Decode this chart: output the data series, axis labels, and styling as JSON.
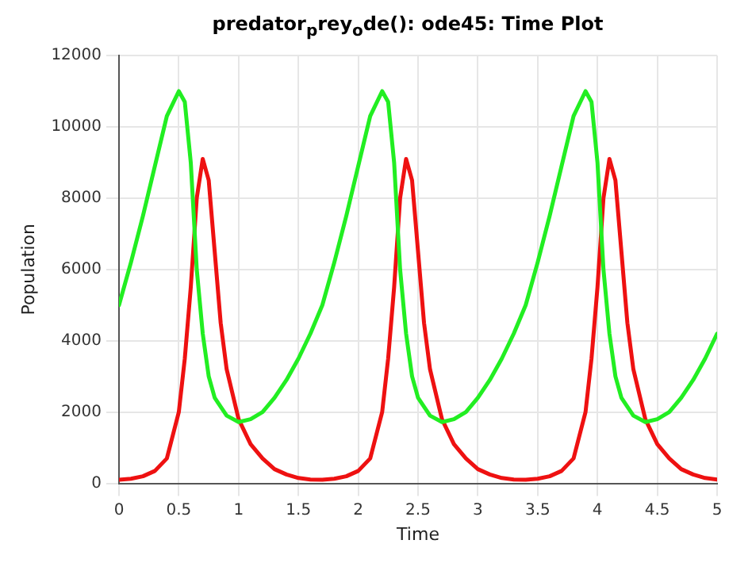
{
  "chart_data": {
    "type": "line",
    "title": "predator$_{p}$rey$_{o}$de(): ode45: Time Plot",
    "xlabel": "Time",
    "ylabel": "Population",
    "xlim": [
      0,
      5
    ],
    "xticks": [
      0,
      0.5,
      1,
      1.5,
      2,
      2.5,
      3,
      3.5,
      4,
      4.5,
      5
    ],
    "ylim": [
      0,
      12000
    ],
    "yticks": [
      0,
      2000,
      4000,
      6000,
      8000,
      10000,
      12000
    ],
    "grid": true,
    "legend": false,
    "marker": "none",
    "line_style": "solid",
    "series": [
      {
        "color": "#22ee22",
        "x": [
          0,
          0.1,
          0.2,
          0.3,
          0.4,
          0.5,
          0.55,
          0.6,
          0.65,
          0.7,
          0.75,
          0.8,
          0.9,
          1,
          1.1,
          1.2,
          1.3,
          1.4,
          1.5,
          1.6,
          1.7,
          1.8,
          1.9,
          2,
          2.1,
          2.2,
          2.25,
          2.3,
          2.35,
          2.4,
          2.45,
          2.5,
          2.6,
          2.7,
          2.8,
          2.9,
          3,
          3.1,
          3.2,
          3.3,
          3.4,
          3.5,
          3.6,
          3.7,
          3.8,
          3.9,
          3.95,
          4,
          4.05,
          4.1,
          4.15,
          4.2,
          4.3,
          4.4,
          4.5,
          4.6,
          4.7,
          4.8,
          4.9,
          5
        ],
        "values": [
          5000,
          6200,
          7500,
          8900,
          10300,
          11000,
          10700,
          9000,
          6000,
          4200,
          3000,
          2400,
          1900,
          1720,
          1800,
          2000,
          2400,
          2900,
          3500,
          4200,
          5000,
          6200,
          7500,
          8900,
          10300,
          11000,
          10700,
          9000,
          6000,
          4200,
          3000,
          2400,
          1900,
          1720,
          1800,
          2000,
          2400,
          2900,
          3500,
          4200,
          5000,
          6200,
          7500,
          8900,
          10300,
          11000,
          10700,
          9000,
          6000,
          4200,
          3000,
          2400,
          1900,
          1720,
          1800,
          2000,
          2400,
          2900,
          3500,
          4200
        ]
      },
      {
        "color": "#ee1111",
        "x": [
          0,
          0.1,
          0.2,
          0.3,
          0.4,
          0.5,
          0.55,
          0.6,
          0.65,
          0.7,
          0.75,
          0.8,
          0.85,
          0.9,
          1,
          1.1,
          1.2,
          1.3,
          1.4,
          1.5,
          1.6,
          1.7,
          1.8,
          1.9,
          2,
          2.1,
          2.2,
          2.25,
          2.3,
          2.35,
          2.4,
          2.45,
          2.5,
          2.55,
          2.6,
          2.7,
          2.8,
          2.9,
          3,
          3.1,
          3.2,
          3.3,
          3.4,
          3.5,
          3.6,
          3.7,
          3.8,
          3.9,
          3.95,
          4,
          4.05,
          4.1,
          4.15,
          4.2,
          4.25,
          4.3,
          4.4,
          4.5,
          4.6,
          4.7,
          4.8,
          4.9,
          5
        ],
        "values": [
          100,
          130,
          200,
          350,
          700,
          2000,
          3500,
          5500,
          8000,
          9100,
          8500,
          6500,
          4500,
          3200,
          1800,
          1100,
          700,
          400,
          250,
          150,
          110,
          100,
          130,
          200,
          350,
          700,
          2000,
          3500,
          5500,
          8000,
          9100,
          8500,
          6500,
          4500,
          3200,
          1800,
          1100,
          700,
          400,
          250,
          150,
          110,
          100,
          130,
          200,
          350,
          700,
          2000,
          3500,
          5500,
          8000,
          9100,
          8500,
          6500,
          4500,
          3200,
          1800,
          1100,
          700,
          400,
          250,
          150,
          110
        ]
      }
    ]
  }
}
